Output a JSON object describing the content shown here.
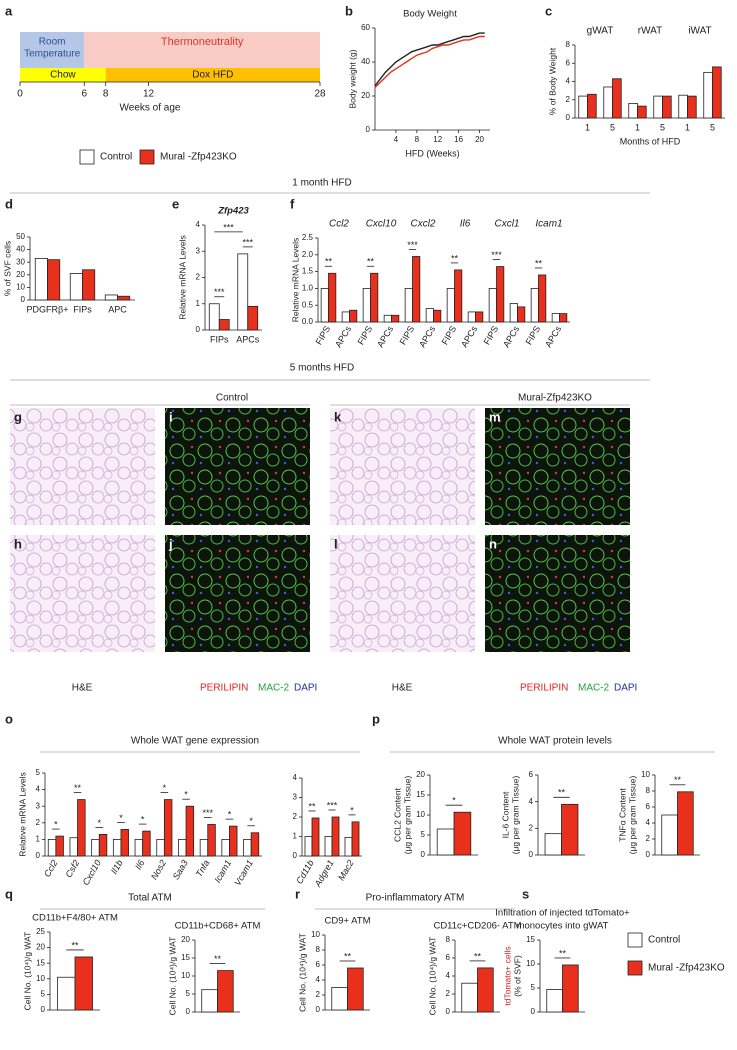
{
  "figure": {
    "panels": [
      "a",
      "b",
      "c",
      "d",
      "e",
      "f",
      "g",
      "h",
      "i",
      "j",
      "k",
      "l",
      "m",
      "n",
      "o",
      "p",
      "q",
      "r",
      "s"
    ],
    "timeline": {
      "room": [
        "Room",
        "Temperature"
      ],
      "thermo": "Thermoneutrality",
      "chow": "Chow",
      "dox": "Dox HFD",
      "ticks": [
        0,
        6,
        8,
        12,
        28
      ],
      "xlabel": "Weeks of age"
    },
    "sections": [
      "1 month HFD",
      "5 months HFD"
    ],
    "image_groups": [
      "Control",
      "Mural-Zfp423KO"
    ],
    "captions": [
      "H&E",
      "PERILIPIN",
      "MAC-2",
      "DAPI"
    ],
    "section_titles": [
      "Whole WAT gene expression",
      "Whole WAT protein levels",
      "Total ATM",
      "Pro-inflammatory ATM"
    ]
  },
  "chart_data": [
    {
      "type": "line",
      "title": "Body Weight",
      "xlabel": "HFD (Weeks)",
      "ylabel": "Body weight (g)",
      "x": [
        0,
        1,
        2,
        3,
        4,
        5,
        6,
        7,
        8,
        9,
        10,
        11,
        12,
        13,
        14,
        15,
        16,
        17,
        18,
        19,
        20,
        21
      ],
      "series": [
        {
          "color": "#222222",
          "values": [
            26,
            30,
            34,
            37,
            40,
            42,
            44,
            46,
            47,
            48,
            49,
            50,
            50,
            51,
            52,
            53,
            54,
            55,
            55,
            56,
            57,
            57
          ]
        },
        {
          "color": "#e8301c",
          "values": [
            25,
            28,
            31,
            34,
            36,
            38,
            40,
            42,
            44,
            45,
            46,
            48,
            49,
            50,
            50,
            51,
            52,
            53,
            53,
            54,
            55,
            55
          ]
        }
      ],
      "xlim": [
        0,
        22
      ],
      "ylim": [
        0,
        60
      ],
      "xticks": [
        4,
        8,
        12,
        16,
        20
      ],
      "yticks": [
        0,
        20,
        40,
        60
      ]
    },
    {
      "type": "bar",
      "ylabel": "% of Body Weight",
      "xlabel": "Months of HFD",
      "groups": [
        "gWAT",
        "rWAT",
        "iWAT"
      ],
      "categories": [
        "1",
        "5",
        "1",
        "5",
        "1",
        "5"
      ],
      "series": [
        {
          "name": "Control",
          "color": "#ffffff",
          "values": [
            2.4,
            3.4,
            1.6,
            2.4,
            2.5,
            5.0
          ]
        },
        {
          "name": "Mural -Zfp423KO",
          "color": "#e8301c",
          "values": [
            2.6,
            4.3,
            1.3,
            2.4,
            2.4,
            5.6
          ]
        }
      ],
      "ylim": [
        0,
        8
      ],
      "yticks": [
        0,
        2,
        4,
        6,
        8
      ]
    },
    {
      "type": "bar",
      "ylabel": "% of SVF cells",
      "categories": [
        "PDGFRβ+",
        "FIPs",
        "APC"
      ],
      "series": [
        {
          "color": "#ffffff",
          "values": [
            33,
            21,
            4
          ]
        },
        {
          "color": "#e8301c",
          "values": [
            32,
            24,
            3
          ]
        }
      ],
      "ylim": [
        0,
        50
      ],
      "yticks": [
        0,
        10,
        20,
        30,
        40,
        50
      ]
    },
    {
      "type": "bar",
      "title": "Zfp423",
      "title_italic": true,
      "ylabel": "Relative mRNA Levels",
      "categories": [
        "FIPs",
        "APCs"
      ],
      "series": [
        {
          "color": "#ffffff",
          "values": [
            1.0,
            2.9
          ]
        },
        {
          "color": "#e8301c",
          "values": [
            0.4,
            0.9
          ]
        }
      ],
      "significance": [
        "***",
        "***"
      ],
      "top_comparison": "***",
      "ylim": [
        0,
        4
      ],
      "yticks": [
        0,
        1,
        2,
        3,
        4
      ]
    },
    {
      "type": "bar",
      "ylabel": "Relative mRNA Levels",
      "groups": [
        "Ccl2",
        "Cxcl10",
        "Cxcl2",
        "Il6",
        "Cxcl1",
        "Icam1"
      ],
      "group_italic": true,
      "categories": [
        "FIPS",
        "APCs",
        "FIPS",
        "APCs",
        "FIPS",
        "APCs",
        "FIPS",
        "APCs",
        "FIPS",
        "APCs",
        "FIPS",
        "APCs"
      ],
      "rotate_labels": true,
      "series": [
        {
          "color": "#ffffff",
          "values": [
            1.0,
            0.3,
            1.0,
            0.2,
            1.0,
            0.4,
            1.0,
            0.3,
            1.0,
            0.55,
            1.0,
            0.25
          ]
        },
        {
          "color": "#e8301c",
          "values": [
            1.45,
            0.35,
            1.45,
            0.2,
            1.95,
            0.35,
            1.55,
            0.3,
            1.65,
            0.45,
            1.4,
            0.25
          ]
        }
      ],
      "significance": [
        "**",
        null,
        "**",
        null,
        "***",
        null,
        "**",
        null,
        "***",
        null,
        "**",
        null
      ],
      "ylim": [
        0,
        2.5
      ],
      "yticks": [
        {
          "value": 0,
          "label": "0.0"
        },
        {
          "value": 0.5,
          "label": "0.5"
        },
        {
          "value": 1,
          "label": "1.0"
        },
        {
          "value": 1.5,
          "label": "1.5"
        },
        {
          "value": 2,
          "label": "2.0"
        },
        {
          "value": 2.5,
          "label": "2.5"
        }
      ]
    },
    {
      "type": "bar",
      "ylabel": "Relative mRNA Levels",
      "categories": [
        "Ccl2",
        "Csf2",
        "Cxcl10",
        "Il1b",
        "Il6",
        "Nos2",
        "Saa3",
        "Tnfa",
        "Icam1",
        "Vcam1"
      ],
      "rotate_labels": true,
      "italic_labels": true,
      "series": [
        {
          "color": "#ffffff",
          "values": [
            1.0,
            1.1,
            1.0,
            1.0,
            1.0,
            1.0,
            1.0,
            1.0,
            1.0,
            1.0
          ]
        },
        {
          "color": "#e8301c",
          "values": [
            1.2,
            3.4,
            1.3,
            1.6,
            1.5,
            3.4,
            3.0,
            1.9,
            1.8,
            1.4
          ]
        }
      ],
      "significance": [
        "*",
        "**",
        "*",
        "*",
        "*",
        "*",
        "*",
        "***",
        "*",
        "*"
      ],
      "ylim": [
        0,
        5
      ],
      "yticks": [
        0,
        1,
        2,
        3,
        4,
        5
      ]
    },
    {
      "type": "bar",
      "categories": [
        "Cd11b",
        "Adgre1",
        "Mac2"
      ],
      "rotate_labels": true,
      "italic_labels": true,
      "series": [
        {
          "color": "#ffffff",
          "values": [
            1.0,
            1.0,
            0.95
          ]
        },
        {
          "color": "#e8301c",
          "values": [
            1.95,
            2.0,
            1.75
          ]
        }
      ],
      "significance": [
        "**",
        "***",
        "*"
      ],
      "ylim": [
        0,
        4
      ],
      "yticks": [
        0,
        1,
        2,
        3,
        4
      ]
    },
    {
      "type": "bar",
      "ylabel": [
        "CCL2 Content",
        "(μg per gram Tissue)"
      ],
      "categories": [
        null
      ],
      "series": [
        {
          "color": "#ffffff",
          "values": [
            6.5
          ]
        },
        {
          "color": "#e8301c",
          "values": [
            10.7
          ]
        }
      ],
      "significance": [
        "*"
      ],
      "ylim": [
        0,
        20
      ],
      "yticks": [
        0,
        5,
        10,
        15,
        20
      ]
    },
    {
      "type": "bar",
      "ylabel": [
        "IL-6 Content",
        "(μg per gram Tissue)"
      ],
      "categories": [
        null
      ],
      "series": [
        {
          "color": "#ffffff",
          "values": [
            1.6
          ]
        },
        {
          "color": "#e8301c",
          "values": [
            3.8
          ]
        }
      ],
      "significance": [
        "**"
      ],
      "ylim": [
        0,
        6
      ],
      "yticks": [
        0,
        2,
        4,
        6
      ]
    },
    {
      "type": "bar",
      "ylabel": [
        "TNFα Content",
        "(μg per gram Tissue)"
      ],
      "categories": [
        null
      ],
      "series": [
        {
          "color": "#ffffff",
          "values": [
            5.0
          ]
        },
        {
          "color": "#e8301c",
          "values": [
            7.9
          ]
        }
      ],
      "significance": [
        "**"
      ],
      "ylim": [
        0,
        10
      ],
      "yticks": [
        0,
        2,
        4,
        6,
        8,
        10
      ]
    },
    {
      "type": "bar",
      "title": "CD11b+F4/80+ ATM",
      "ylabel": "Cell No. (10⁴)/g WAT",
      "categories": [
        null
      ],
      "series": [
        {
          "color": "#ffffff",
          "values": [
            10.5
          ]
        },
        {
          "color": "#e8301c",
          "values": [
            17
          ]
        }
      ],
      "significance": [
        "**"
      ],
      "ylim": [
        0,
        25
      ],
      "yticks": [
        0,
        5,
        10,
        15,
        20,
        25
      ]
    },
    {
      "type": "bar",
      "title": "CD11b+CD68+ ATM",
      "ylabel": "Cell No. (10⁴)/g WAT",
      "categories": [
        null
      ],
      "series": [
        {
          "color": "#ffffff",
          "values": [
            6.2
          ]
        },
        {
          "color": "#e8301c",
          "values": [
            11.5
          ]
        }
      ],
      "significance": [
        "**"
      ],
      "ylim": [
        0,
        20
      ],
      "yticks": [
        0,
        5,
        10,
        15,
        20
      ]
    },
    {
      "type": "bar",
      "title": "CD9+ ATM",
      "ylabel": "Cell No. (10⁴)/g WAT",
      "categories": [
        null
      ],
      "series": [
        {
          "color": "#ffffff",
          "values": [
            3.0
          ]
        },
        {
          "color": "#e8301c",
          "values": [
            5.6
          ]
        }
      ],
      "significance": [
        "**"
      ],
      "ylim": [
        0,
        10
      ],
      "yticks": [
        0,
        2,
        4,
        6,
        8,
        10
      ]
    },
    {
      "type": "bar",
      "title": "CD11c+CD206- ATM",
      "ylabel": "Cell No. (10⁴)/g WAT",
      "categories": [
        null
      ],
      "series": [
        {
          "color": "#ffffff",
          "values": [
            3.2
          ]
        },
        {
          "color": "#e8301c",
          "values": [
            4.9
          ]
        }
      ],
      "significance": [
        "**"
      ],
      "ylim": [
        0,
        8
      ],
      "yticks": [
        0,
        2,
        4,
        6,
        8
      ]
    },
    {
      "type": "bar",
      "title": [
        "Infiltration of injected tdTomato+",
        "monocytes into gWAT"
      ],
      "ylabel": [
        "tdTomato+ cells",
        "(% of SVF)"
      ],
      "categories": [
        null
      ],
      "series": [
        {
          "name": "Control",
          "color": "#ffffff",
          "values": [
            4.7
          ]
        },
        {
          "name": "Mural -Zfp423KO",
          "color": "#e8301c",
          "values": [
            9.8
          ]
        }
      ],
      "significance": [
        "**"
      ],
      "ylim": [
        0,
        15
      ],
      "yticks": [
        0,
        5,
        10,
        15
      ]
    }
  ]
}
